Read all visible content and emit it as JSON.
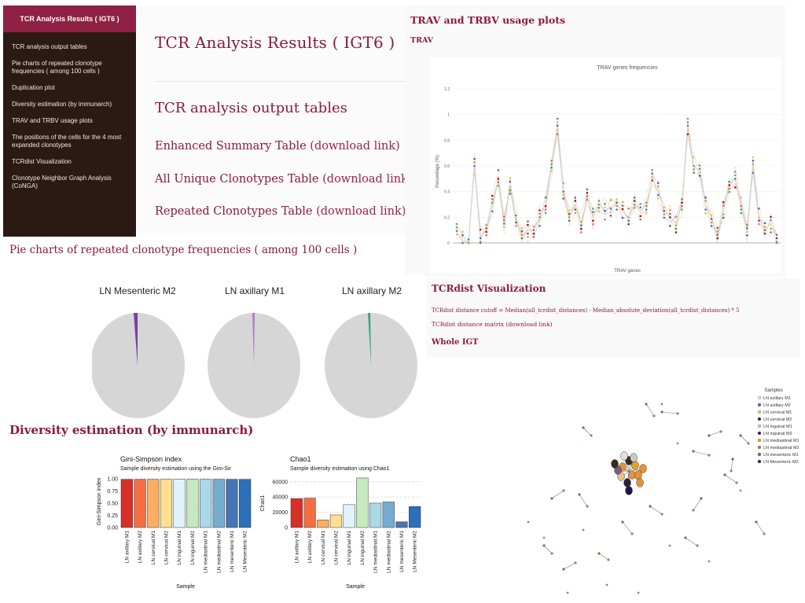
{
  "sidebar": {
    "title": "TCR Analysis Results ( IGT6 )",
    "items": [
      "TCR analysis output tables",
      "Pie charts of repeated clonotype frequencies ( among 100 cells )",
      "Duplication plot",
      "Diversity estimation (by immunarch)",
      "TRAV and TRBV usage plots",
      "The positions of the cells for the 4 most expanded clonotypes",
      "TCRdist Visualization",
      "Clonotype Neighbor Graph Analysis (CoNGA)"
    ]
  },
  "main": {
    "title": "TCR Analysis Results ( IGT6 )",
    "section": "TCR analysis output tables",
    "downloads": [
      {
        "label": "Enhanced Summary Table",
        "link": "(download link)"
      },
      {
        "label": "All Unique Clonotypes Table",
        "link": "(download link)"
      },
      {
        "label": "Repeated Clonotypes Table",
        "link": "(download link)"
      }
    ]
  },
  "trav": {
    "section": "TRAV and TRBV usage plots",
    "sub": "TRAV",
    "plot_title": "TRAV genes frequencies",
    "ylabel": "Percentage (%)",
    "xlabel": "TRAV genes",
    "yticks": [
      "0",
      "0.2",
      "0.4",
      "0.6",
      "0.8",
      "1",
      "1.2"
    ]
  },
  "pies": {
    "title": "Pie charts of repeated clonotype frequencies ( among 100 cells )",
    "labels": [
      "LN Mesenteric M2",
      "LN axillary M1",
      "LN axillary M2"
    ]
  },
  "diversity": {
    "title": "Diversity estimation (by immunarch)",
    "gini": {
      "title": "Gini-Simpson index",
      "subtitle": "Sample diversity estimation using the Gini-Sir",
      "ylabel": "Gini-Simpson index",
      "xlabel": "Sample",
      "yticks": [
        "0.00",
        "0.25",
        "0.50",
        "0.75",
        "1.00"
      ]
    },
    "chao": {
      "title": "Chao1",
      "subtitle": "Sample diversity estimation using Chao1",
      "ylabel": "Chao1",
      "xlabel": "Sample",
      "yticks": [
        "0",
        "20000",
        "40000",
        "60000"
      ]
    },
    "samples": [
      "LN axillary M1",
      "LN axillary M2",
      "LN cervical M1",
      "LN cervical M2",
      "LN inguinal M1",
      "LN inguinal M2",
      "LN mediastinal M1",
      "LN mediastinal M2",
      "LN mesenteric M1",
      "LN Mesenteric M2"
    ]
  },
  "chart_data": [
    {
      "type": "bar",
      "title": "Gini-Simpson index",
      "subtitle": "Sample diversity estimation using the Gini-Sir",
      "xlabel": "Sample",
      "ylabel": "Gini-Simpson index",
      "ylim": [
        0,
        1.05
      ],
      "categories": [
        "LN axillary M1",
        "LN axillary M2",
        "LN cervical M1",
        "LN cervical M2",
        "LN inguinal M1",
        "LN inguinal M2",
        "LN mediastinal M1",
        "LN mediastinal M2",
        "LN mesenteric M1",
        "LN Mesenteric M2"
      ],
      "values": [
        0.99,
        0.99,
        0.99,
        0.99,
        0.99,
        0.99,
        0.99,
        0.99,
        0.99,
        0.99
      ],
      "colors": [
        "#d73027",
        "#f46d43",
        "#fdae61",
        "#fee090",
        "#e0f3f8",
        "#c7e9c0",
        "#abd9e9",
        "#74add1",
        "#4575b4",
        "#2c6fbb"
      ]
    },
    {
      "type": "bar",
      "title": "Chao1",
      "subtitle": "Sample diversity estimation using Chao1",
      "xlabel": "Sample",
      "ylabel": "Chao1",
      "ylim": [
        0,
        67000
      ],
      "categories": [
        "LN axillary M1",
        "LN axillary M2",
        "LN cervical M1",
        "LN cervical M2",
        "LN inguinal M1",
        "LN inguinal M2",
        "LN mediastinal M1",
        "LN mediastinal M2",
        "LN mesenteric M1",
        "LN Mesenteric M2"
      ],
      "values": [
        38000,
        38500,
        10000,
        16500,
        30000,
        65000,
        32000,
        33500,
        7500,
        27500
      ],
      "colors": [
        "#d73027",
        "#f46d43",
        "#fdae61",
        "#fee090",
        "#e0f3f8",
        "#c7e9c0",
        "#abd9e9",
        "#74add1",
        "#4575b4",
        "#2c6fbb"
      ]
    },
    {
      "type": "line",
      "title": "TRAV genes frequencies",
      "xlabel": "TRAV genes",
      "ylabel": "Percentage (%)",
      "ylim": [
        0,
        1.2
      ],
      "series": [
        {
          "values": [
            0.08,
            0.02,
            0.0,
            0.6,
            0.05,
            0.1,
            0.3,
            0.5,
            0.15,
            0.45,
            0.2,
            0.05,
            0.1,
            0.1,
            0.2,
            0.3,
            0.6,
            0.9,
            0.4,
            0.2,
            0.3,
            0.15,
            0.35,
            0.2,
            0.3,
            0.25,
            0.28,
            0.3,
            0.25,
            0.2,
            0.3,
            0.25,
            0.3,
            0.5,
            0.4,
            0.25,
            0.2,
            0.15,
            0.3,
            0.9,
            0.6,
            0.55,
            0.3,
            0.2,
            0.05,
            0.25,
            0.45,
            0.5,
            0.3,
            0.1,
            0.6,
            0.2,
            0.1,
            0.15,
            0.05
          ]
        }
      ],
      "color": "#e7b08a"
    }
  ],
  "tcrdist": {
    "title": "TCRdist Visualization",
    "cutoff": "TCRdist distance cutoff = Median(all_tcrdist_distances) - Median_absolute_deviation(all_tcrdist_distances) * 5",
    "matrix_label": "TCRdist distance matrix",
    "matrix_link": "(download link)",
    "whole": "Whole IGT",
    "legend_title": "Samples",
    "legend": [
      {
        "label": "LN axillary M1",
        "color": "#e0e0e0"
      },
      {
        "label": "LN axillary M2",
        "color": "#7a5a8c"
      },
      {
        "label": "LN cervical M1",
        "color": "#f0c080"
      },
      {
        "label": "LN cervical M2",
        "color": "#3a2a20"
      },
      {
        "label": "LN inguinal M1",
        "color": "#c8c8c8"
      },
      {
        "label": "LN inguinal M2",
        "color": "#2a2040"
      },
      {
        "label": "LN mediastinal M1",
        "color": "#e6a020"
      },
      {
        "label": "LN mediastinal M2",
        "color": "#a08060"
      },
      {
        "label": "LN mesenteric M1",
        "color": "#6a6a6a"
      },
      {
        "label": "LN Mesenteric M2",
        "color": "#1a1a4a"
      }
    ]
  }
}
